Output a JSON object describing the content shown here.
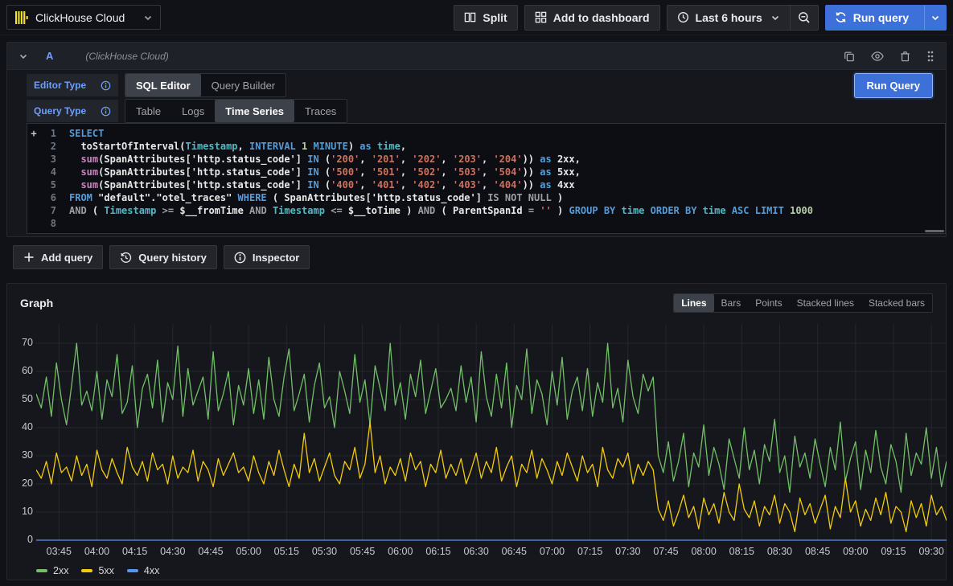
{
  "topbar": {
    "datasource": {
      "label": "ClickHouse Cloud",
      "icon": "clickhouse-logo"
    },
    "split_label": "Split",
    "add_to_dashboard_label": "Add to dashboard",
    "time_range_label": "Last 6 hours",
    "run_query_label": "Run query"
  },
  "query_panel": {
    "ref_id": "A",
    "datasource_name": "(ClickHouse Cloud)",
    "editor_type": {
      "label": "Editor Type",
      "options": [
        "SQL Editor",
        "Query Builder"
      ],
      "selected": 0
    },
    "query_type": {
      "label": "Query Type",
      "options": [
        "Table",
        "Logs",
        "Time Series",
        "Traces"
      ],
      "selected": 2
    },
    "run_query_label": "Run Query",
    "footer_buttons": [
      "Add query",
      "Query history",
      "Inspector"
    ],
    "code": {
      "lines": [
        [
          {
            "t": "SELECT",
            "c": "kw"
          }
        ],
        [
          {
            "t": "  toStartOfInterval(",
            "c": "def"
          },
          {
            "t": "Timestamp",
            "c": "type"
          },
          {
            "t": ", ",
            "c": "def"
          },
          {
            "t": "INTERVAL",
            "c": "kw"
          },
          {
            "t": " ",
            "c": "def"
          },
          {
            "t": "1",
            "c": "num"
          },
          {
            "t": " ",
            "c": "def"
          },
          {
            "t": "MINUTE",
            "c": "kw"
          },
          {
            "t": ") ",
            "c": "def"
          },
          {
            "t": "as",
            "c": "kw"
          },
          {
            "t": " ",
            "c": "def"
          },
          {
            "t": "time",
            "c": "type"
          },
          {
            "t": ",",
            "c": "def"
          }
        ],
        [
          {
            "t": "  ",
            "c": "def"
          },
          {
            "t": "sum",
            "c": "fn"
          },
          {
            "t": "(SpanAttributes['http.status_code'] ",
            "c": "def"
          },
          {
            "t": "IN",
            "c": "kw"
          },
          {
            "t": " (",
            "c": "def"
          },
          {
            "t": "'200'",
            "c": "str"
          },
          {
            "t": ", ",
            "c": "def"
          },
          {
            "t": "'201'",
            "c": "str"
          },
          {
            "t": ", ",
            "c": "def"
          },
          {
            "t": "'202'",
            "c": "str"
          },
          {
            "t": ", ",
            "c": "def"
          },
          {
            "t": "'203'",
            "c": "str"
          },
          {
            "t": ", ",
            "c": "def"
          },
          {
            "t": "'204'",
            "c": "str"
          },
          {
            "t": ")) ",
            "c": "def"
          },
          {
            "t": "as",
            "c": "kw"
          },
          {
            "t": " 2xx,",
            "c": "def"
          }
        ],
        [
          {
            "t": "  ",
            "c": "def"
          },
          {
            "t": "sum",
            "c": "fn"
          },
          {
            "t": "(SpanAttributes['http.status_code'] ",
            "c": "def"
          },
          {
            "t": "IN",
            "c": "kw"
          },
          {
            "t": " (",
            "c": "def"
          },
          {
            "t": "'500'",
            "c": "str"
          },
          {
            "t": ", ",
            "c": "def"
          },
          {
            "t": "'501'",
            "c": "str"
          },
          {
            "t": ", ",
            "c": "def"
          },
          {
            "t": "'502'",
            "c": "str"
          },
          {
            "t": ", ",
            "c": "def"
          },
          {
            "t": "'503'",
            "c": "str"
          },
          {
            "t": ", ",
            "c": "def"
          },
          {
            "t": "'504'",
            "c": "str"
          },
          {
            "t": ")) ",
            "c": "def"
          },
          {
            "t": "as",
            "c": "kw"
          },
          {
            "t": " 5xx,",
            "c": "def"
          }
        ],
        [
          {
            "t": "  ",
            "c": "def"
          },
          {
            "t": "sum",
            "c": "fn"
          },
          {
            "t": "(SpanAttributes['http.status_code'] ",
            "c": "def"
          },
          {
            "t": "IN",
            "c": "kw"
          },
          {
            "t": " (",
            "c": "def"
          },
          {
            "t": "'400'",
            "c": "str"
          },
          {
            "t": ", ",
            "c": "def"
          },
          {
            "t": "'401'",
            "c": "str"
          },
          {
            "t": ", ",
            "c": "def"
          },
          {
            "t": "'402'",
            "c": "str"
          },
          {
            "t": ", ",
            "c": "def"
          },
          {
            "t": "'403'",
            "c": "str"
          },
          {
            "t": ", ",
            "c": "def"
          },
          {
            "t": "'404'",
            "c": "str"
          },
          {
            "t": ")) ",
            "c": "def"
          },
          {
            "t": "as",
            "c": "kw"
          },
          {
            "t": " 4xx",
            "c": "def"
          }
        ],
        [
          {
            "t": "FROM",
            "c": "kw"
          },
          {
            "t": " \"default\".\"otel_traces\" ",
            "c": "def"
          },
          {
            "t": "WHERE",
            "c": "kw"
          },
          {
            "t": " ( SpanAttributes['http.status_code'] ",
            "c": "def"
          },
          {
            "t": "IS NOT NULL",
            "c": "gray"
          },
          {
            "t": " )",
            "c": "def"
          }
        ],
        [
          {
            "t": "AND",
            "c": "gray"
          },
          {
            "t": " ( ",
            "c": "def"
          },
          {
            "t": "Timestamp",
            "c": "type"
          },
          {
            "t": " ",
            "c": "def"
          },
          {
            "t": ">=",
            "c": "gray"
          },
          {
            "t": " $__fromTime ",
            "c": "def"
          },
          {
            "t": "AND",
            "c": "gray"
          },
          {
            "t": " ",
            "c": "def"
          },
          {
            "t": "Timestamp",
            "c": "type"
          },
          {
            "t": " ",
            "c": "def"
          },
          {
            "t": "<=",
            "c": "gray"
          },
          {
            "t": " $__toTime ) ",
            "c": "def"
          },
          {
            "t": "AND",
            "c": "gray"
          },
          {
            "t": " ( ParentSpanId ",
            "c": "def"
          },
          {
            "t": "=",
            "c": "gray"
          },
          {
            "t": " ",
            "c": "def"
          },
          {
            "t": "''",
            "c": "str"
          },
          {
            "t": " ) ",
            "c": "def"
          },
          {
            "t": "GROUP BY",
            "c": "kw"
          },
          {
            "t": " ",
            "c": "def"
          },
          {
            "t": "time",
            "c": "type"
          },
          {
            "t": " ",
            "c": "def"
          },
          {
            "t": "ORDER BY",
            "c": "kw"
          },
          {
            "t": " ",
            "c": "def"
          },
          {
            "t": "time",
            "c": "type"
          },
          {
            "t": " ",
            "c": "def"
          },
          {
            "t": "ASC",
            "c": "kw"
          },
          {
            "t": " ",
            "c": "def"
          },
          {
            "t": "LIMIT",
            "c": "kw"
          },
          {
            "t": " ",
            "c": "def"
          },
          {
            "t": "1000",
            "c": "num"
          }
        ],
        []
      ]
    }
  },
  "graph_panel": {
    "title": "Graph",
    "modes": [
      "Lines",
      "Bars",
      "Points",
      "Stacked lines",
      "Stacked bars"
    ],
    "selected_mode": 0,
    "chart_data": {
      "type": "line",
      "title": "Graph",
      "xlabel": "",
      "ylabel": "",
      "x_start": "03:36",
      "x_end": "09:36",
      "interval_minutes": 2,
      "x_ticks": [
        "03:45",
        "04:00",
        "04:15",
        "04:30",
        "04:45",
        "05:00",
        "05:15",
        "05:30",
        "05:45",
        "06:00",
        "06:15",
        "06:30",
        "06:45",
        "07:00",
        "07:15",
        "07:30",
        "07:45",
        "08:00",
        "08:15",
        "08:30",
        "08:45",
        "09:00",
        "09:15",
        "09:30"
      ],
      "y_ticks": [
        0,
        10,
        20,
        30,
        40,
        50,
        60,
        70
      ],
      "ylim": [
        0,
        77
      ],
      "grid": true,
      "legend_position": "bottom",
      "series": [
        {
          "name": "2xx",
          "color": "#73bf69",
          "values": [
            52,
            47,
            58,
            44,
            63,
            50,
            41,
            55,
            70,
            48,
            53,
            46,
            60,
            43,
            57,
            51,
            66,
            45,
            49,
            62,
            40,
            54,
            59,
            47,
            64,
            42,
            56,
            50,
            69,
            44,
            61,
            48,
            53,
            58,
            43,
            67,
            46,
            52,
            60,
            41,
            55,
            48,
            61,
            45,
            57,
            43,
            65,
            50,
            44,
            58,
            68,
            46,
            52,
            59,
            42,
            55,
            63,
            47,
            51,
            40,
            60,
            53,
            45,
            66,
            49,
            57,
            41,
            62,
            54,
            46,
            70,
            48,
            56,
            43,
            59,
            51,
            64,
            45,
            53,
            61,
            47,
            50,
            54,
            46,
            62,
            49,
            58,
            42,
            67,
            51,
            44,
            59,
            47,
            63,
            40,
            55,
            50,
            68,
            45,
            57,
            52,
            41,
            60,
            48,
            65,
            43,
            53,
            58,
            46,
            61,
            44,
            56,
            49,
            70,
            47,
            54,
            42,
            64,
            51,
            45,
            59,
            53,
            58,
            30,
            24,
            35,
            21,
            28,
            38,
            19,
            31,
            26,
            41,
            23,
            33,
            27,
            18,
            36,
            29,
            22,
            40,
            25,
            32,
            20,
            34,
            28,
            43,
            24,
            30,
            17,
            37,
            26,
            31,
            22,
            36,
            27,
            19,
            33,
            25,
            42,
            21,
            29,
            35,
            18,
            32,
            24,
            39,
            26,
            20,
            34,
            28,
            17,
            38,
            23,
            31,
            27,
            40,
            22,
            33,
            19,
            28
          ]
        },
        {
          "name": "5xx",
          "color": "#f2cc0c",
          "values": [
            25,
            22,
            28,
            20,
            31,
            24,
            26,
            21,
            30,
            23,
            27,
            19,
            32,
            25,
            22,
            29,
            24,
            20,
            33,
            26,
            23,
            28,
            21,
            31,
            25,
            27,
            20,
            30,
            22,
            26,
            24,
            32,
            21,
            28,
            25,
            19,
            29,
            23,
            27,
            31,
            24,
            26,
            21,
            30,
            24,
            20,
            28,
            23,
            32,
            25,
            19,
            27,
            22,
            38,
            24,
            29,
            21,
            26,
            31,
            23,
            20,
            28,
            25,
            33,
            22,
            27,
            42,
            24,
            30,
            20,
            26,
            23,
            29,
            21,
            31,
            25,
            28,
            19,
            27,
            24,
            32,
            22,
            27,
            23,
            29,
            20,
            25,
            31,
            22,
            28,
            24,
            33,
            21,
            26,
            30,
            19,
            27,
            24,
            32,
            22,
            29,
            25,
            20,
            28,
            23,
            31,
            26,
            21,
            30,
            24,
            27,
            19,
            33,
            25,
            22,
            29,
            26,
            31,
            20,
            27,
            23,
            28,
            25,
            11,
            7,
            14,
            5,
            10,
            16,
            8,
            12,
            4,
            15,
            9,
            13,
            6,
            17,
            10,
            7,
            20,
            11,
            8,
            14,
            5,
            12,
            9,
            16,
            6,
            13,
            10,
            3,
            15,
            9,
            13,
            6,
            11,
            16,
            4,
            12,
            8,
            22,
            10,
            14,
            5,
            11,
            7,
            15,
            9,
            17,
            6,
            12,
            10,
            3,
            14,
            8,
            13,
            5,
            16,
            9,
            12,
            7
          ]
        },
        {
          "name": "4xx",
          "color": "#5794f2",
          "values": [
            0,
            0,
            0,
            0,
            0,
            0,
            0,
            0,
            0,
            0,
            0,
            0,
            0,
            0,
            0,
            0,
            0,
            0,
            0,
            0,
            0,
            0,
            0,
            0,
            0,
            0,
            0,
            0,
            0,
            0,
            0,
            0,
            0,
            0,
            0,
            0,
            0,
            0,
            0,
            0,
            0,
            0,
            0,
            0,
            0,
            0,
            0,
            0,
            0,
            0,
            0,
            0,
            0,
            0,
            0,
            0,
            0,
            0,
            0,
            0,
            0,
            0,
            0,
            0,
            0,
            0,
            0,
            0,
            0,
            0,
            0,
            0,
            0,
            0,
            0,
            0,
            0,
            0,
            0,
            0,
            0,
            0,
            0,
            0,
            0,
            0,
            0,
            0,
            0,
            0,
            0,
            0,
            0,
            0,
            0,
            0,
            0,
            0,
            0,
            0,
            0,
            0,
            0,
            0,
            0,
            0,
            0,
            0,
            0,
            0,
            0,
            0,
            0,
            0,
            0,
            0,
            0,
            0,
            0,
            0,
            0,
            0,
            0,
            0,
            0,
            0,
            0,
            0,
            0,
            0,
            0,
            0,
            0,
            0,
            0,
            0,
            0,
            0,
            0,
            0,
            0,
            0,
            0,
            0,
            0,
            0,
            0,
            0,
            0,
            0,
            0,
            0,
            0,
            0,
            0,
            0,
            0,
            0,
            0,
            0,
            0,
            0,
            0,
            0,
            0,
            0,
            0,
            0,
            0,
            0,
            0,
            0,
            0,
            0,
            0,
            0,
            0,
            0,
            0,
            0,
            0
          ]
        }
      ]
    }
  },
  "colors": {
    "accent": "#3d71d9",
    "panel_bg": "#16171c",
    "grid": "#24272c",
    "axis_text": "#c8cace",
    "label_blue": "#6e9fff",
    "clickhouse_yellow": "#f3e52a"
  }
}
